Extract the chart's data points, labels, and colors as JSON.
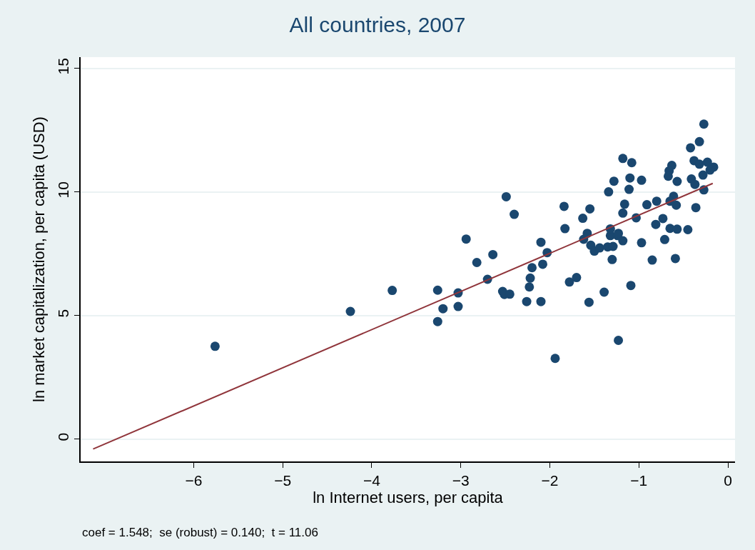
{
  "chart_data": {
    "type": "scatter",
    "title": "All countries, 2007",
    "xlabel": "ln Internet users, per capita",
    "ylabel": "ln market capitalization, per capita (USD)",
    "annotations": [
      "coef = 1.548;  se (robust) = 0.140;  t = 11.06"
    ],
    "xlim": [
      -7.27,
      0.08
    ],
    "ylim": [
      -0.9,
      15.46
    ],
    "xticks": [
      {
        "value": -6,
        "label": "−6"
      },
      {
        "value": -5,
        "label": "−5"
      },
      {
        "value": -4,
        "label": "−4"
      },
      {
        "value": -3,
        "label": "−3"
      },
      {
        "value": -2,
        "label": "−2"
      },
      {
        "value": -1,
        "label": "−1"
      },
      0
    ],
    "yticks": [
      0,
      5,
      10,
      15
    ],
    "grid": "y",
    "marker": "circle",
    "series": [
      {
        "color": "#1a476f",
        "x": [
          -5.76,
          -4.24,
          -3.77,
          -3.26,
          -3.2,
          -3.26,
          -3.03,
          -3.03,
          -2.94,
          -2.82,
          -2.7,
          -2.64,
          -2.53,
          -2.51,
          -2.45,
          -2.49,
          -2.4,
          -2.26,
          -2.23,
          -2.22,
          -2.2,
          -2.1,
          -2.08,
          -2.1,
          -2.03,
          -1.94,
          -1.78,
          -1.7,
          -1.84,
          -1.83,
          -1.56,
          -1.39,
          -1.3,
          -1.23,
          -1.09,
          -1.18,
          -0.97,
          -1.62,
          -1.54,
          -1.5,
          -1.44,
          -1.35,
          -1.29,
          -1.32,
          -1.24,
          -1.63,
          -1.55,
          -0.27,
          -0.32,
          -0.42,
          -1.18,
          -1.08,
          -0.38,
          -0.32,
          -0.23,
          -0.16,
          -0.2,
          -0.28,
          -0.63,
          -0.66,
          -0.67,
          -0.57,
          -0.41,
          -0.37,
          -0.27,
          -1.28,
          -1.1,
          -0.97,
          -1.34,
          -1.11,
          -1.16,
          -1.18,
          -0.91,
          -0.8,
          -0.61,
          -0.58,
          -0.65,
          -0.36,
          -1.03,
          -0.73,
          -0.81,
          -0.65,
          -0.57,
          -0.45,
          -1.32,
          -1.23,
          -1.58,
          -0.71,
          -0.85,
          -0.59
        ],
        "values": [
          3.76,
          5.17,
          6.02,
          6.03,
          5.28,
          4.76,
          5.92,
          5.37,
          8.1,
          7.15,
          6.47,
          7.47,
          5.98,
          5.86,
          5.87,
          9.81,
          9.1,
          5.57,
          6.16,
          6.52,
          6.94,
          5.57,
          7.08,
          7.97,
          7.55,
          3.27,
          6.36,
          6.54,
          9.42,
          8.52,
          5.54,
          5.95,
          7.27,
          4.0,
          6.22,
          8.03,
          7.95,
          8.09,
          7.85,
          7.61,
          7.74,
          7.78,
          7.8,
          8.24,
          8.24,
          8.94,
          9.32,
          12.75,
          12.04,
          11.79,
          11.36,
          11.19,
          11.27,
          11.13,
          11.21,
          11.01,
          10.89,
          10.69,
          11.08,
          10.86,
          10.64,
          10.43,
          10.53,
          10.31,
          10.09,
          10.44,
          10.57,
          10.48,
          10.01,
          10.11,
          9.51,
          9.15,
          9.49,
          9.63,
          9.83,
          9.47,
          9.63,
          9.37,
          8.96,
          8.93,
          8.69,
          8.53,
          8.5,
          8.48,
          8.51,
          8.33,
          8.33,
          8.08,
          7.25,
          7.31
        ]
      },
      {
        "type": "line",
        "color": "#90353b",
        "x": [
          -7.13,
          -0.17
        ],
        "values": [
          -0.4,
          10.35
        ],
        "marker": "none",
        "line_style": "solid"
      }
    ]
  }
}
